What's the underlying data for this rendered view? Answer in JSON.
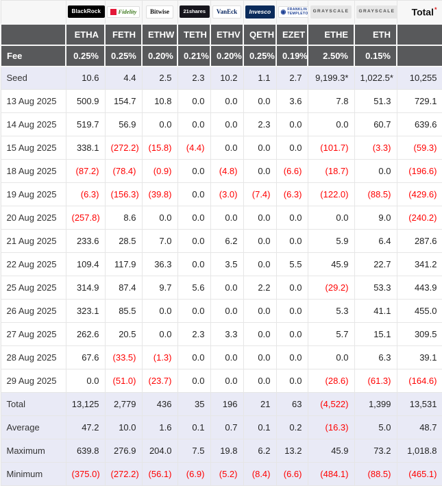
{
  "chart_data": {
    "type": "table",
    "issuer_header": [
      {
        "brand": "blackrock",
        "label": "BlackRock"
      },
      {
        "brand": "fidelity",
        "label": "Fidelity"
      },
      {
        "brand": "bitwise",
        "label": "Bitwise"
      },
      {
        "brand": "twentyone-shares",
        "label": "21shares"
      },
      {
        "brand": "vaneck",
        "label": "VanEck"
      },
      {
        "brand": "invesco",
        "label": "Invesco"
      },
      {
        "brand": "franklin-templeton",
        "label": "FRANKLIN TEMPLETON"
      },
      {
        "brand": "grayscale",
        "label": "GRAYSCALE"
      },
      {
        "brand": "grayscale",
        "label": "GRAYSCALE"
      }
    ],
    "total_header": {
      "label": "Total",
      "note": "*"
    },
    "tickers": [
      "ETHA",
      "FETH",
      "ETHW",
      "TETH",
      "ETHV",
      "QETH",
      "EZET",
      "ETHE",
      "ETH"
    ],
    "fee_row": {
      "label": "Fee",
      "values": [
        "0.25%",
        "0.25%",
        "0.20%",
        "0.21%",
        "0.20%",
        "0.25%",
        "0.19%",
        "2.50%",
        "0.15%"
      ]
    },
    "rows": [
      {
        "label": "Seed",
        "highlight": true,
        "values": [
          "10.6",
          "4.4",
          "2.5",
          "2.3",
          "10.2",
          "1.1",
          "2.7",
          "9,199.3*",
          "1,022.5*"
        ],
        "total": "10,255"
      },
      {
        "label": "13 Aug 2025",
        "highlight": false,
        "values": [
          "500.9",
          "154.7",
          "10.8",
          "0.0",
          "0.0",
          "0.0",
          "3.6",
          "7.8",
          "51.3"
        ],
        "total": "729.1"
      },
      {
        "label": "14 Aug 2025",
        "highlight": false,
        "values": [
          "519.7",
          "56.9",
          "0.0",
          "0.0",
          "0.0",
          "2.3",
          "0.0",
          "0.0",
          "60.7"
        ],
        "total": "639.6"
      },
      {
        "label": "15 Aug 2025",
        "highlight": false,
        "values": [
          "338.1",
          "(272.2)",
          "(15.8)",
          "(4.4)",
          "0.0",
          "0.0",
          "0.0",
          "(101.7)",
          "(3.3)"
        ],
        "total": "(59.3)"
      },
      {
        "label": "18 Aug 2025",
        "highlight": false,
        "values": [
          "(87.2)",
          "(78.4)",
          "(0.9)",
          "0.0",
          "(4.8)",
          "0.0",
          "(6.6)",
          "(18.7)",
          "0.0"
        ],
        "total": "(196.6)"
      },
      {
        "label": "19 Aug 2025",
        "highlight": false,
        "values": [
          "(6.3)",
          "(156.3)",
          "(39.8)",
          "0.0",
          "(3.0)",
          "(7.4)",
          "(6.3)",
          "(122.0)",
          "(88.5)"
        ],
        "total": "(429.6)"
      },
      {
        "label": "20 Aug 2025",
        "highlight": false,
        "values": [
          "(257.8)",
          "8.6",
          "0.0",
          "0.0",
          "0.0",
          "0.0",
          "0.0",
          "0.0",
          "9.0"
        ],
        "total": "(240.2)"
      },
      {
        "label": "21 Aug 2025",
        "highlight": false,
        "values": [
          "233.6",
          "28.5",
          "7.0",
          "0.0",
          "6.2",
          "0.0",
          "0.0",
          "5.9",
          "6.4"
        ],
        "total": "287.6"
      },
      {
        "label": "22 Aug 2025",
        "highlight": false,
        "values": [
          "109.4",
          "117.9",
          "36.3",
          "0.0",
          "3.5",
          "0.0",
          "5.5",
          "45.9",
          "22.7"
        ],
        "total": "341.2"
      },
      {
        "label": "25 Aug 2025",
        "highlight": false,
        "values": [
          "314.9",
          "87.4",
          "9.7",
          "5.6",
          "0.0",
          "2.2",
          "0.0",
          "(29.2)",
          "53.3"
        ],
        "total": "443.9"
      },
      {
        "label": "26 Aug 2025",
        "highlight": false,
        "values": [
          "323.1",
          "85.5",
          "0.0",
          "0.0",
          "0.0",
          "0.0",
          "0.0",
          "5.3",
          "41.1"
        ],
        "total": "455.0"
      },
      {
        "label": "27 Aug 2025",
        "highlight": false,
        "values": [
          "262.6",
          "20.5",
          "0.0",
          "2.3",
          "3.3",
          "0.0",
          "0.0",
          "5.7",
          "15.1"
        ],
        "total": "309.5"
      },
      {
        "label": "28 Aug 2025",
        "highlight": false,
        "values": [
          "67.6",
          "(33.5)",
          "(1.3)",
          "0.0",
          "0.0",
          "0.0",
          "0.0",
          "0.0",
          "6.3"
        ],
        "total": "39.1"
      },
      {
        "label": "29 Aug 2025",
        "highlight": false,
        "values": [
          "0.0",
          "(51.0)",
          "(23.7)",
          "0.0",
          "0.0",
          "0.0",
          "0.0",
          "(28.6)",
          "(61.3)"
        ],
        "total": "(164.6)"
      },
      {
        "label": "Total",
        "highlight": true,
        "values": [
          "13,125",
          "2,779",
          "436",
          "35",
          "196",
          "21",
          "63",
          "(4,522)",
          "1,399"
        ],
        "total": "13,531"
      },
      {
        "label": "Average",
        "highlight": true,
        "values": [
          "47.2",
          "10.0",
          "1.6",
          "0.1",
          "0.7",
          "0.1",
          "0.2",
          "(16.3)",
          "5.0"
        ],
        "total": "48.7"
      },
      {
        "label": "Maximum",
        "highlight": true,
        "values": [
          "639.8",
          "276.9",
          "204.0",
          "7.5",
          "19.8",
          "6.2",
          "13.2",
          "45.9",
          "73.2"
        ],
        "total": "1,018.8"
      },
      {
        "label": "Minimum",
        "highlight": true,
        "values": [
          "(375.0)",
          "(272.2)",
          "(56.1)",
          "(6.9)",
          "(5.2)",
          "(8.4)",
          "(6.6)",
          "(484.1)",
          "(88.5)"
        ],
        "total": "(465.1)"
      }
    ]
  },
  "colors": {
    "negative": "#ff0000",
    "header_bg": "#58595b",
    "highlight_bg": "#e9eaf6",
    "positive_text": "#222222"
  }
}
